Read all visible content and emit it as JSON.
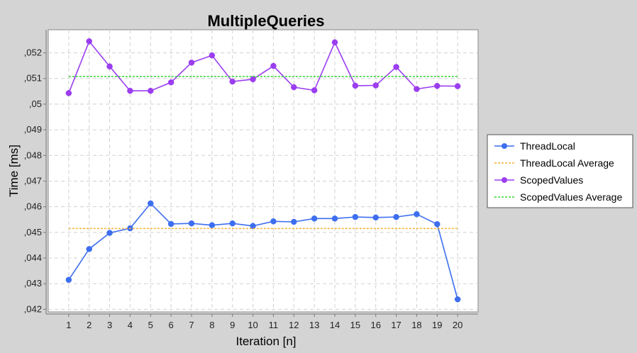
{
  "chart_data": {
    "type": "line",
    "title": "MultipleQueries",
    "xlabel": "Iteration [n]",
    "ylabel": "Time [ms]",
    "x": [
      1,
      2,
      3,
      4,
      5,
      6,
      7,
      8,
      9,
      10,
      11,
      12,
      13,
      14,
      15,
      16,
      17,
      18,
      19,
      20
    ],
    "xlim": [
      0,
      21
    ],
    "ylim": [
      0.0419,
      0.0529
    ],
    "y_ticks": [
      0.042,
      0.043,
      0.044,
      0.045,
      0.046,
      0.047,
      0.048,
      0.049,
      0.05,
      0.051,
      0.052
    ],
    "y_tick_labels": [
      ",042",
      ",043",
      ",044",
      ",045",
      ",046",
      ",047",
      ",048",
      ",049",
      ",05",
      ",051",
      ",052"
    ],
    "grid": true,
    "legend_position": "right",
    "series": [
      {
        "name": "ThreadLocal",
        "style": "line-markers",
        "color": "#3d6ef0",
        "values": [
          0.04315,
          0.04435,
          0.04498,
          0.04516,
          0.04613,
          0.04533,
          0.04535,
          0.04528,
          0.04535,
          0.04525,
          0.04543,
          0.04541,
          0.04554,
          0.04554,
          0.0456,
          0.04558,
          0.0456,
          0.04571,
          0.04532,
          0.04239
        ]
      },
      {
        "name": "ThreadLocal Average",
        "style": "dashed",
        "color": "#f5b133",
        "values": [
          0.04515,
          0.04515,
          0.04515,
          0.04515,
          0.04515,
          0.04515,
          0.04515,
          0.04515,
          0.04515,
          0.04515,
          0.04515,
          0.04515,
          0.04515,
          0.04515,
          0.04515,
          0.04515,
          0.04515,
          0.04515,
          0.04515,
          0.04515
        ]
      },
      {
        "name": "ScopedValues",
        "style": "line-markers",
        "color": "#9b3df0",
        "values": [
          0.05043,
          0.05245,
          0.05147,
          0.05052,
          0.05052,
          0.05085,
          0.05162,
          0.0519,
          0.05088,
          0.05097,
          0.05149,
          0.05066,
          0.05054,
          0.05241,
          0.05072,
          0.05073,
          0.05145,
          0.05059,
          0.05071,
          0.0507
        ]
      },
      {
        "name": "ScopedValues Average",
        "style": "dashed",
        "color": "#33d633",
        "values": [
          0.05108,
          0.05108,
          0.05108,
          0.05108,
          0.05108,
          0.05108,
          0.05108,
          0.05108,
          0.05108,
          0.05108,
          0.05108,
          0.05108,
          0.05108,
          0.05108,
          0.05108,
          0.05108,
          0.05108,
          0.05108,
          0.05108,
          0.05108
        ]
      }
    ]
  }
}
